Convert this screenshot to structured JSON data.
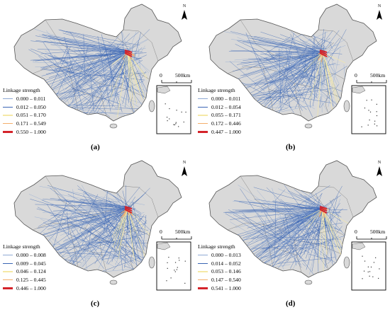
{
  "legend_title": "Linkage strength",
  "scale_zero": "0",
  "scale_value": "500",
  "scale_unit": "km",
  "north_label": "N",
  "legend_colors": [
    "#8fa9d4",
    "#3a65b4",
    "#f5e9a6",
    "#f3ae6b",
    "#d4232a"
  ],
  "panels": [
    {
      "caption": "(a)",
      "ranges": [
        "0.000 – 0.011",
        "0.012 – 0.050",
        "0.051 – 0.170",
        "0.171 – 0.549",
        "0.550 – 1.000"
      ]
    },
    {
      "caption": "(b)",
      "ranges": [
        "0.000 – 0.011",
        "0.012 – 0.054",
        "0.055 – 0.171",
        "0.172 – 0.446",
        "0.447 – 1.000"
      ]
    },
    {
      "caption": "(c)",
      "ranges": [
        "0.000 – 0.008",
        "0.009 – 0.045",
        "0.046 – 0.124",
        "0.125 – 0.445",
        "0.446 – 1.000"
      ]
    },
    {
      "caption": "(d)",
      "ranges": [
        "0.000 – 0.013",
        "0.014 – 0.052",
        "0.053 – 0.146",
        "0.147 – 0.540",
        "0.541 – 1.000"
      ]
    }
  ]
}
